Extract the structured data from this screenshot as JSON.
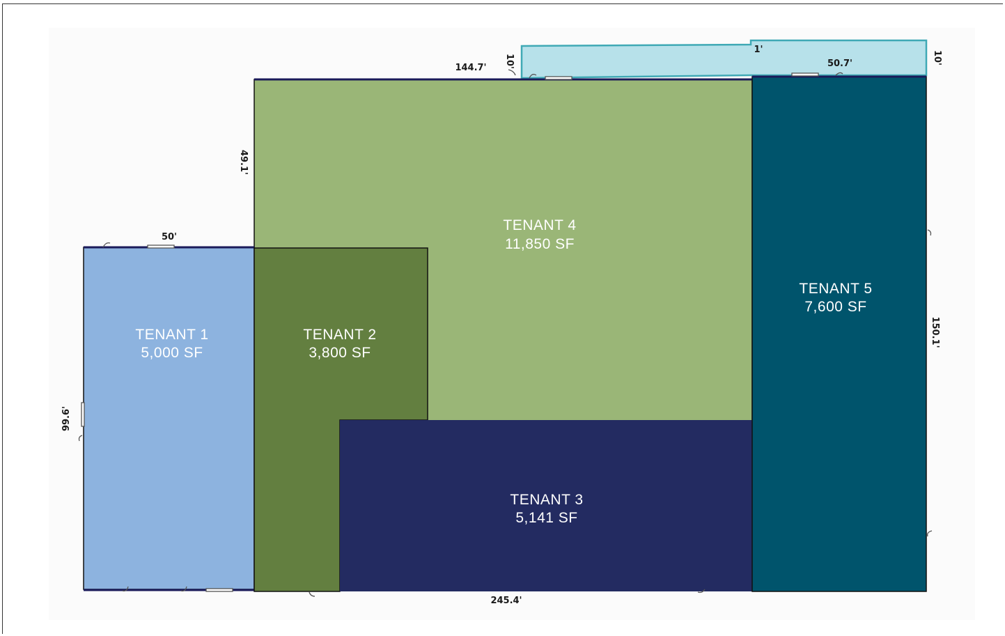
{
  "tenants": [
    {
      "name": "TENANT 1",
      "area": "5,000 SF",
      "color": "#8db3df"
    },
    {
      "name": "TENANT 2",
      "area": "3,800 SF",
      "color": "#637f40"
    },
    {
      "name": "TENANT 3",
      "area": "5,141 SF",
      "color": "#232b61"
    },
    {
      "name": "TENANT 4",
      "area": "11,850 SF",
      "color": "#9ab677"
    },
    {
      "name": "TENANT 5",
      "area": "7,600 SF",
      "color": "#00546c"
    }
  ],
  "annex_color": "#b7e1ea",
  "annex_border": "#3fa9b5",
  "dimensions": {
    "top_main": "144.7'",
    "annex_left": "10'",
    "annex_step": "1'",
    "annex_right_width": "50.7'",
    "annex_right_height": "10'",
    "tenant4_left": "49.1'",
    "tenant1_top": "50'",
    "tenant1_left": "99.6'",
    "right_side": "150.1'",
    "bottom": "245.4'"
  }
}
